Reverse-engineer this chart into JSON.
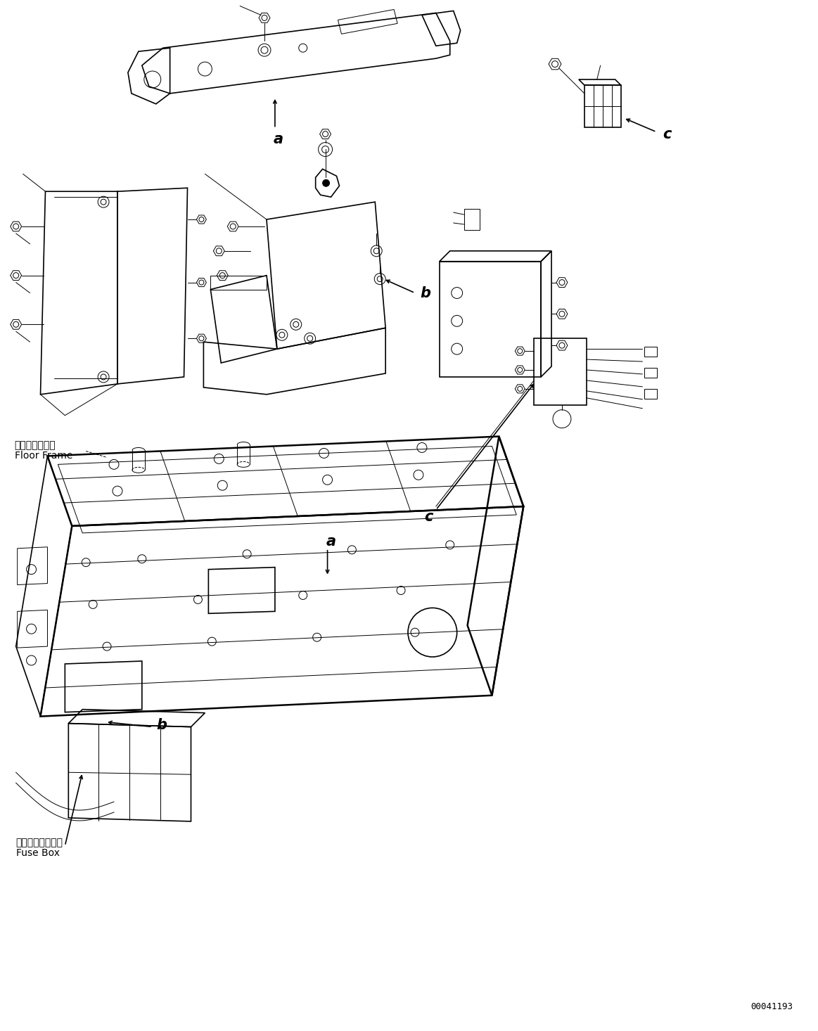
{
  "doc_number": "00041193",
  "background_color": "#ffffff",
  "line_color": "#000000",
  "labels": {
    "floor_frame_jp": "フロアフレーム",
    "floor_frame_en": "Floor Frame",
    "fuse_box_jp": "フューズボックス",
    "fuse_box_en": "Fuse Box"
  },
  "figsize": [
    11.63,
    14.66
  ],
  "dpi": 100,
  "lw_thin": 0.7,
  "lw_med": 1.2,
  "lw_thick": 1.8
}
